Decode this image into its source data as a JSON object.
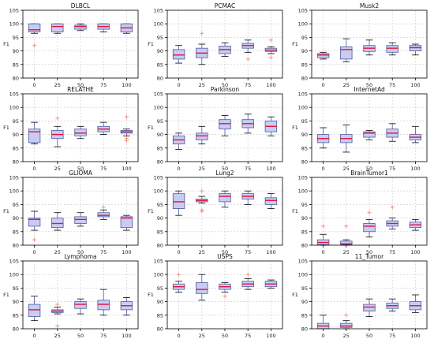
{
  "style": {
    "box_fill": "#c9ccf2",
    "box_edge": "#4a5aa0",
    "median_color": "#e0143c",
    "outlier_color": "#f08a7a",
    "grid_color": "#c8c8c8",
    "axis_color": "#000000"
  },
  "chart_data": [
    {
      "type": "boxplot",
      "title": "DLBCL",
      "ylabel": "F1",
      "categories": [
        "0",
        "25",
        "50",
        "75",
        "100"
      ],
      "yticks": [
        "80",
        "85",
        "90",
        "95",
        "100",
        "105"
      ],
      "ylim": [
        80,
        105
      ],
      "grid": true,
      "boxes": [
        {
          "min": 96.5,
          "q1": 97,
          "median": 97.8,
          "q3": 100,
          "max": 100,
          "outliers": [
            92
          ]
        },
        {
          "min": 96.5,
          "q1": 97,
          "median": 99,
          "q3": 100,
          "max": 100,
          "outliers": []
        },
        {
          "min": 97.5,
          "q1": 98,
          "median": 99,
          "q3": 99.5,
          "max": 100,
          "outliers": []
        },
        {
          "min": 97,
          "q1": 98,
          "median": 99,
          "q3": 100,
          "max": 100,
          "outliers": []
        },
        {
          "min": 96.5,
          "q1": 97,
          "median": 98.5,
          "q3": 100,
          "max": 100,
          "outliers": []
        }
      ]
    },
    {
      "type": "boxplot",
      "title": "PCMAC",
      "ylabel": "F1",
      "categories": [
        "0",
        "25",
        "50",
        "75",
        "100"
      ],
      "yticks": [
        "80",
        "85",
        "90",
        "95",
        "100",
        "105"
      ],
      "ylim": [
        80,
        105
      ],
      "grid": true,
      "boxes": [
        {
          "min": 85.5,
          "q1": 87,
          "median": 88.5,
          "q3": 90.5,
          "max": 92,
          "outliers": []
        },
        {
          "min": 85,
          "q1": 87.5,
          "median": 89.2,
          "q3": 91,
          "max": 92.5,
          "outliers": [
            96.5
          ]
        },
        {
          "min": 88,
          "q1": 89,
          "median": 90.5,
          "q3": 91.8,
          "max": 93,
          "outliers": []
        },
        {
          "min": 89.5,
          "q1": 91,
          "median": 92,
          "q3": 92.8,
          "max": 94,
          "outliers": [
            87
          ]
        },
        {
          "min": 89,
          "q1": 89.8,
          "median": 90.3,
          "q3": 91,
          "max": 91.5,
          "outliers": [
            94,
            87.5
          ]
        }
      ]
    },
    {
      "type": "boxplot",
      "title": "Musk2",
      "ylabel": "F1",
      "categories": [
        "0",
        "25",
        "50",
        "75",
        "100"
      ],
      "yticks": [
        "80",
        "85",
        "90",
        "95",
        "100",
        "105"
      ],
      "ylim": [
        80,
        105
      ],
      "grid": true,
      "boxes": [
        {
          "min": 87,
          "q1": 87.5,
          "median": 88.5,
          "q3": 89,
          "max": 89.5,
          "outliers": []
        },
        {
          "min": 86,
          "q1": 87,
          "median": 90.5,
          "q3": 91.5,
          "max": 94.5,
          "outliers": []
        },
        {
          "min": 88.5,
          "q1": 89.8,
          "median": 91,
          "q3": 92,
          "max": 94,
          "outliers": []
        },
        {
          "min": 88.5,
          "q1": 89.5,
          "median": 91,
          "q3": 92,
          "max": 93,
          "outliers": []
        },
        {
          "min": 88.5,
          "q1": 90,
          "median": 91.2,
          "q3": 92,
          "max": 92.5,
          "outliers": []
        }
      ]
    },
    {
      "type": "boxplot",
      "title": "RELATHE",
      "ylabel": "F1",
      "categories": [
        "0",
        "25",
        "50",
        "75",
        "100"
      ],
      "yticks": [
        "80",
        "85",
        "90",
        "95",
        "100",
        "105"
      ],
      "ylim": [
        80,
        105
      ],
      "grid": true,
      "boxes": [
        {
          "min": 86.5,
          "q1": 87,
          "median": 91,
          "q3": 92,
          "max": 94.5,
          "outliers": []
        },
        {
          "min": 85.5,
          "q1": 88.5,
          "median": 90,
          "q3": 91.5,
          "max": 93,
          "outliers": [
            96
          ]
        },
        {
          "min": 88.5,
          "q1": 89.5,
          "median": 90.5,
          "q3": 92,
          "max": 93,
          "outliers": []
        },
        {
          "min": 90,
          "q1": 91,
          "median": 92,
          "q3": 93,
          "max": 94.5,
          "outliers": []
        },
        {
          "min": 89.5,
          "q1": 90.5,
          "median": 91,
          "q3": 91.5,
          "max": 92,
          "outliers": [
            96.5,
            88.5,
            87.8
          ]
        }
      ]
    },
    {
      "type": "boxplot",
      "title": "Parkinson",
      "ylabel": "F1",
      "categories": [
        "0",
        "25",
        "50",
        "75",
        "100"
      ],
      "yticks": [
        "80",
        "85",
        "90",
        "95",
        "100",
        "105"
      ],
      "ylim": [
        80,
        105
      ],
      "grid": true,
      "boxes": [
        {
          "min": 84.5,
          "q1": 86.5,
          "median": 88,
          "q3": 89.5,
          "max": 90.5,
          "outliers": []
        },
        {
          "min": 86.5,
          "q1": 88,
          "median": 89.5,
          "q3": 90.5,
          "max": 93,
          "outliers": []
        },
        {
          "min": 89.5,
          "q1": 92,
          "median": 94,
          "q3": 95.5,
          "max": 97,
          "outliers": []
        },
        {
          "min": 90.5,
          "q1": 92.5,
          "median": 94,
          "q3": 95.5,
          "max": 97.5,
          "outliers": []
        },
        {
          "min": 89.5,
          "q1": 91,
          "median": 93,
          "q3": 95,
          "max": 96.5,
          "outliers": []
        }
      ]
    },
    {
      "type": "boxplot",
      "title": "InternetAd",
      "ylabel": "F1",
      "categories": [
        "0",
        "25",
        "50",
        "75",
        "100"
      ],
      "yticks": [
        "80",
        "85",
        "90",
        "95",
        "100",
        "105"
      ],
      "ylim": [
        80,
        105
      ],
      "grid": true,
      "boxes": [
        {
          "min": 85,
          "q1": 87,
          "median": 88.5,
          "q3": 90,
          "max": 92.5,
          "outliers": []
        },
        {
          "min": 83.5,
          "q1": 87,
          "median": 88.5,
          "q3": 90,
          "max": 93.5,
          "outliers": []
        },
        {
          "min": 88,
          "q1": 89,
          "median": 90.5,
          "q3": 91,
          "max": 91.5,
          "outliers": []
        },
        {
          "min": 87.5,
          "q1": 89,
          "median": 90.5,
          "q3": 92,
          "max": 94,
          "outliers": []
        },
        {
          "min": 87,
          "q1": 88,
          "median": 89,
          "q3": 90,
          "max": 93,
          "outliers": []
        }
      ]
    },
    {
      "type": "boxplot",
      "title": "GLIOMA",
      "ylabel": "F1",
      "categories": [
        "0",
        "25",
        "50",
        "75",
        "100"
      ],
      "yticks": [
        "80",
        "85",
        "90",
        "95",
        "100",
        "105"
      ],
      "ylim": [
        80,
        105
      ],
      "grid": true,
      "boxes": [
        {
          "min": 85.5,
          "q1": 87,
          "median": 89.5,
          "q3": 90,
          "max": 92.5,
          "outliers": [
            82
          ]
        },
        {
          "min": 85.5,
          "q1": 86.5,
          "median": 88,
          "q3": 90,
          "max": 92,
          "outliers": []
        },
        {
          "min": 87,
          "q1": 88,
          "median": 89.5,
          "q3": 90.5,
          "max": 92,
          "outliers": []
        },
        {
          "min": 89.5,
          "q1": 90.5,
          "median": 91,
          "q3": 92,
          "max": 93,
          "outliers": [
            94
          ]
        },
        {
          "min": 85.5,
          "q1": 86.5,
          "median": 90,
          "q3": 90.5,
          "max": 91,
          "outliers": []
        }
      ]
    },
    {
      "type": "boxplot",
      "title": "Lung2",
      "ylabel": "F1",
      "categories": [
        "0",
        "25",
        "50",
        "75",
        "100"
      ],
      "yticks": [
        "80",
        "85",
        "90",
        "95",
        "100",
        "105"
      ],
      "ylim": [
        80,
        105
      ],
      "grid": true,
      "boxes": [
        {
          "min": 91,
          "q1": 93.5,
          "median": 96,
          "q3": 99,
          "max": 100,
          "outliers": []
        },
        {
          "min": 95.5,
          "q1": 96,
          "median": 96.5,
          "q3": 97,
          "max": 98,
          "outliers": [
            100,
            93,
            92.5
          ]
        },
        {
          "min": 94,
          "q1": 96,
          "median": 98,
          "q3": 99,
          "max": 100,
          "outliers": []
        },
        {
          "min": 95,
          "q1": 97,
          "median": 98,
          "q3": 99,
          "max": 100,
          "outliers": []
        },
        {
          "min": 93.5,
          "q1": 95,
          "median": 96.5,
          "q3": 97.5,
          "max": 99,
          "outliers": []
        }
      ]
    },
    {
      "type": "boxplot",
      "title": "BrainTumor1",
      "ylabel": "F1",
      "categories": [
        "0",
        "25",
        "50",
        "75",
        "100"
      ],
      "yticks": [
        "80",
        "85",
        "90",
        "95",
        "100",
        "105"
      ],
      "ylim": [
        80,
        105
      ],
      "grid": true,
      "boxes": [
        {
          "min": 80,
          "q1": 80.2,
          "median": 81,
          "q3": 82,
          "max": 84,
          "outliers": [
            87
          ]
        },
        {
          "min": 80,
          "q1": 80.2,
          "median": 80.5,
          "q3": 81.5,
          "max": 82,
          "outliers": [
            87
          ]
        },
        {
          "min": 83,
          "q1": 85,
          "median": 87,
          "q3": 88,
          "max": 89.5,
          "outliers": [
            92
          ]
        },
        {
          "min": 86,
          "q1": 87,
          "median": 88,
          "q3": 89,
          "max": 90,
          "outliers": [
            94
          ]
        },
        {
          "min": 85.5,
          "q1": 86.5,
          "median": 87.5,
          "q3": 88.5,
          "max": 89.5,
          "outliers": []
        }
      ]
    },
    {
      "type": "boxplot",
      "title": "Lymphoma",
      "ylabel": "F1",
      "categories": [
        "0",
        "25",
        "50",
        "75",
        "100"
      ],
      "yticks": [
        "80",
        "85",
        "90",
        "95",
        "100",
        "105"
      ],
      "ylim": [
        80,
        105
      ],
      "grid": true,
      "boxes": [
        {
          "min": 83,
          "q1": 84.5,
          "median": 87,
          "q3": 89,
          "max": 92,
          "outliers": []
        },
        {
          "min": 85.5,
          "q1": 86,
          "median": 86.5,
          "q3": 87,
          "max": 88,
          "outliers": [
            89,
            81
          ]
        },
        {
          "min": 85.5,
          "q1": 87.5,
          "median": 89,
          "q3": 90,
          "max": 91,
          "outliers": []
        },
        {
          "min": 85,
          "q1": 87,
          "median": 89,
          "q3": 90.5,
          "max": 94.5,
          "outliers": []
        },
        {
          "min": 85,
          "q1": 87,
          "median": 88.5,
          "q3": 90,
          "max": 91.5,
          "outliers": []
        }
      ]
    },
    {
      "type": "boxplot",
      "title": "USPS",
      "ylabel": "F1",
      "categories": [
        "0",
        "25",
        "50",
        "75",
        "100"
      ],
      "yticks": [
        "80",
        "85",
        "90",
        "95",
        "100",
        "105"
      ],
      "ylim": [
        80,
        105
      ],
      "grid": true,
      "boxes": [
        {
          "min": 93.5,
          "q1": 94.5,
          "median": 95.5,
          "q3": 96.5,
          "max": 97.5,
          "outliers": [
            100
          ]
        },
        {
          "min": 90.5,
          "q1": 93,
          "median": 94.5,
          "q3": 97,
          "max": 100,
          "outliers": []
        },
        {
          "min": 93.5,
          "q1": 94.5,
          "median": 95.5,
          "q3": 96.5,
          "max": 97,
          "outliers": [
            92
          ]
        },
        {
          "min": 94.5,
          "q1": 95.5,
          "median": 96.5,
          "q3": 97.5,
          "max": 98.5,
          "outliers": [
            100
          ]
        },
        {
          "min": 95,
          "q1": 95.5,
          "median": 96.5,
          "q3": 97.5,
          "max": 98,
          "outliers": []
        }
      ]
    },
    {
      "type": "boxplot",
      "title": "11_Tumor",
      "ylabel": "F1",
      "categories": [
        "0",
        "25",
        "50",
        "75",
        "100"
      ],
      "yticks": [
        "80",
        "85",
        "90",
        "95",
        "100",
        "105"
      ],
      "ylim": [
        80,
        105
      ],
      "grid": true,
      "boxes": [
        {
          "min": 80,
          "q1": 80,
          "median": 81,
          "q3": 82,
          "max": 85,
          "outliers": []
        },
        {
          "min": 80,
          "q1": 80.5,
          "median": 81,
          "q3": 82,
          "max": 83,
          "outliers": [
            85
          ]
        },
        {
          "min": 84.5,
          "q1": 86.5,
          "median": 88,
          "q3": 89,
          "max": 91,
          "outliers": []
        },
        {
          "min": 86.5,
          "q1": 87.5,
          "median": 88.5,
          "q3": 89.5,
          "max": 91,
          "outliers": []
        },
        {
          "min": 86,
          "q1": 87,
          "median": 88.5,
          "q3": 90,
          "max": 92.5,
          "outliers": []
        }
      ]
    }
  ]
}
